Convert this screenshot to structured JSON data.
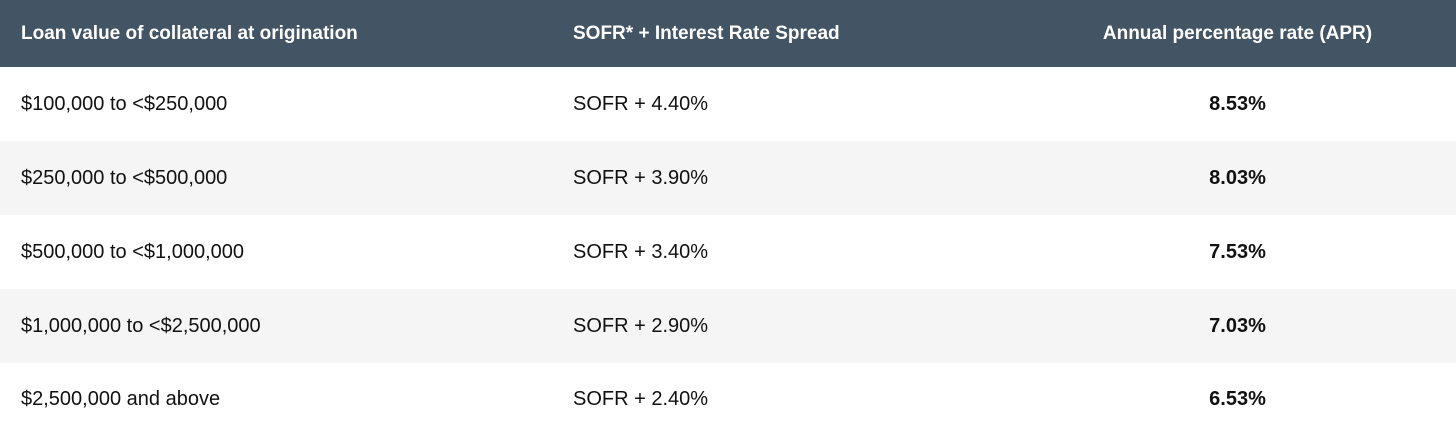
{
  "table": {
    "headers": [
      "Loan value of collateral at origination",
      "SOFR* + Interest Rate Spread",
      "Annual percentage rate (APR)"
    ],
    "rows": [
      {
        "loan_value": "$100,000 to <$250,000",
        "spread": "SOFR + 4.40%",
        "apr": "8.53%"
      },
      {
        "loan_value": "$250,000 to <$500,000",
        "spread": "SOFR + 3.90%",
        "apr": "8.03%"
      },
      {
        "loan_value": "$500,000 to <$1,000,000",
        "spread": "SOFR + 3.40%",
        "apr": "7.53%"
      },
      {
        "loan_value": "$1,000,000 to <$2,500,000",
        "spread": "SOFR + 2.90%",
        "apr": "7.03%"
      },
      {
        "loan_value": "$2,500,000 and above",
        "spread": "SOFR + 2.40%",
        "apr": "6.53%"
      }
    ]
  },
  "colors": {
    "header_background": "#435565",
    "header_text": "#ffffff",
    "row_alt_background": "#f5f5f5",
    "row_background": "#ffffff"
  }
}
